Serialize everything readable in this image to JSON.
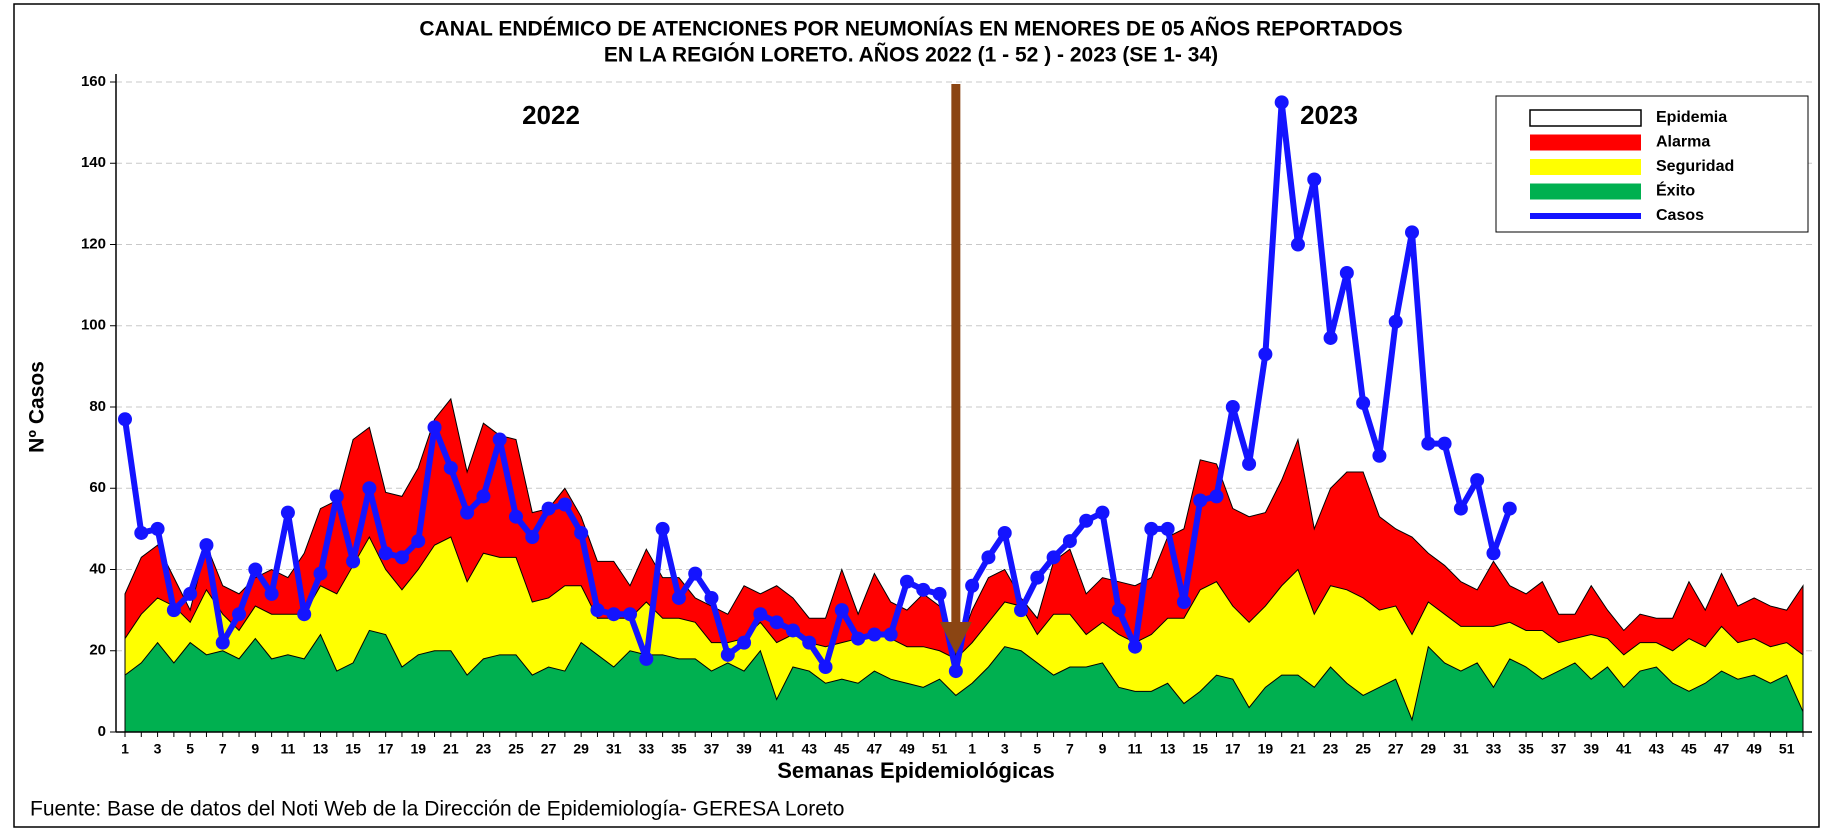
{
  "chart_data": {
    "type": "area",
    "title": [
      "CANAL ENDÉMICO DE ATENCIONES POR NEUMONÍAS EN MENORES DE 05 AÑOS REPORTADOS",
      "EN LA REGIÓN LORETO. AÑOS 2022 (1 - 52 ) - 2023 (SE 1- 34)"
    ],
    "x_label": "Semanas Epidemiológicas",
    "y_label": "Nº Casos",
    "annotations": [
      "2022",
      "2023"
    ],
    "source": "Fuente: Base de datos del Noti Web de la Dirección de Epidemiología- GERESA Loreto",
    "categories": [
      1,
      null,
      3,
      null,
      5,
      null,
      7,
      null,
      9,
      null,
      11,
      null,
      13,
      null,
      15,
      null,
      17,
      null,
      19,
      null,
      21,
      null,
      23,
      null,
      25,
      null,
      27,
      null,
      29,
      null,
      31,
      null,
      33,
      null,
      35,
      null,
      37,
      null,
      39,
      null,
      41,
      null,
      43,
      null,
      45,
      null,
      47,
      null,
      49,
      null,
      51,
      null,
      1,
      null,
      3,
      null,
      5,
      null,
      7,
      null,
      9,
      null,
      11,
      null,
      13,
      null,
      15,
      null,
      17,
      null,
      19,
      null,
      21,
      null,
      23,
      null,
      25,
      null,
      27,
      null,
      29,
      null,
      31,
      null,
      33,
      null,
      35,
      null,
      37,
      null,
      39,
      null,
      41,
      null,
      43,
      null,
      45,
      null,
      47,
      null,
      49,
      null,
      51,
      null
    ],
    "series": [
      {
        "name": "Epidemia",
        "type": "area",
        "color": "#ffffff"
      },
      {
        "name": "Alarma",
        "type": "area",
        "color": "#ff0000",
        "values": [
          34,
          43,
          46,
          38,
          30,
          46,
          36,
          34,
          38,
          40,
          38,
          44,
          55,
          57,
          72,
          75,
          59,
          58,
          65,
          77,
          82,
          64,
          76,
          73,
          72,
          54,
          55,
          60,
          53,
          42,
          42,
          36,
          45,
          38,
          38,
          33,
          31,
          29,
          36,
          34,
          36,
          33,
          28,
          28,
          40,
          29,
          39,
          32,
          30,
          34,
          31,
          19,
          30,
          38,
          40,
          33,
          28,
          42,
          45,
          34,
          38,
          37,
          36,
          38,
          48,
          50,
          67,
          66,
          55,
          53,
          54,
          62,
          72,
          50,
          60,
          64,
          64,
          53,
          50,
          48,
          44,
          41,
          37,
          35,
          42,
          36,
          34,
          37,
          29,
          29,
          36,
          30,
          25,
          29,
          28,
          28,
          37,
          30,
          39,
          31,
          33,
          31,
          30,
          36
        ]
      },
      {
        "name": "Seguridad",
        "type": "area",
        "color": "#ffff00",
        "values": [
          23,
          29,
          33,
          31,
          27,
          35,
          29,
          25,
          31,
          29,
          29,
          29,
          36,
          34,
          41,
          48,
          40,
          35,
          40,
          46,
          48,
          37,
          44,
          43,
          43,
          32,
          33,
          36,
          36,
          28,
          28,
          28,
          32,
          28,
          28,
          27,
          22,
          22,
          23,
          27,
          22,
          24,
          22,
          21,
          22,
          23,
          25,
          23,
          21,
          21,
          20,
          18,
          22,
          27,
          32,
          31,
          24,
          29,
          29,
          24,
          27,
          24,
          22,
          24,
          28,
          28,
          35,
          37,
          31,
          27,
          31,
          36,
          40,
          29,
          36,
          35,
          33,
          30,
          31,
          24,
          32,
          29,
          26,
          26,
          26,
          27,
          25,
          25,
          22,
          23,
          24,
          23,
          19,
          22,
          22,
          20,
          23,
          21,
          26,
          22,
          23,
          21,
          22,
          19
        ]
      },
      {
        "name": "Éxito",
        "type": "area",
        "color": "#00b050",
        "values": [
          14,
          17,
          22,
          17,
          22,
          19,
          20,
          18,
          23,
          18,
          19,
          18,
          24,
          15,
          17,
          25,
          24,
          16,
          19,
          20,
          20,
          14,
          18,
          19,
          19,
          14,
          16,
          15,
          22,
          19,
          16,
          20,
          19,
          19,
          18,
          18,
          15,
          17,
          15,
          20,
          8,
          16,
          15,
          12,
          13,
          12,
          15,
          13,
          12,
          11,
          13,
          9,
          12,
          16,
          21,
          20,
          17,
          14,
          16,
          16,
          17,
          11,
          10,
          10,
          12,
          7,
          10,
          14,
          13,
          6,
          11,
          14,
          14,
          11,
          16,
          12,
          9,
          11,
          13,
          3,
          21,
          17,
          15,
          17,
          11,
          18,
          16,
          13,
          15,
          17,
          13,
          16,
          11,
          15,
          16,
          12,
          10,
          12,
          15,
          13,
          14,
          12,
          14,
          5
        ]
      },
      {
        "name": "Casos",
        "type": "line",
        "color": "#1414ff",
        "values": [
          77,
          49,
          50,
          30,
          34,
          46,
          22,
          29,
          40,
          34,
          54,
          29,
          39,
          58,
          42,
          60,
          44,
          43,
          47,
          75,
          65,
          54,
          58,
          72,
          53,
          48,
          55,
          56,
          49,
          30,
          29,
          29,
          18,
          50,
          33,
          39,
          33,
          19,
          22,
          29,
          27,
          25,
          22,
          16,
          30,
          23,
          24,
          24,
          37,
          35,
          34,
          15,
          36,
          43,
          49,
          30,
          38,
          43,
          47,
          52,
          54,
          30,
          21,
          50,
          50,
          32,
          57,
          58,
          80,
          66,
          93,
          155,
          120,
          136,
          97,
          113,
          81,
          68,
          101,
          123,
          71,
          71,
          55,
          62,
          44,
          55,
          null,
          null,
          null,
          null,
          null,
          null,
          null,
          null,
          null,
          null,
          null,
          null,
          null,
          null,
          null,
          null,
          null,
          null
        ]
      }
    ],
    "ylim": [
      0,
      160
    ],
    "yticks": [
      0,
      20,
      40,
      60,
      80,
      100,
      120,
      140,
      160
    ],
    "grid": true,
    "legend": "upper right"
  }
}
